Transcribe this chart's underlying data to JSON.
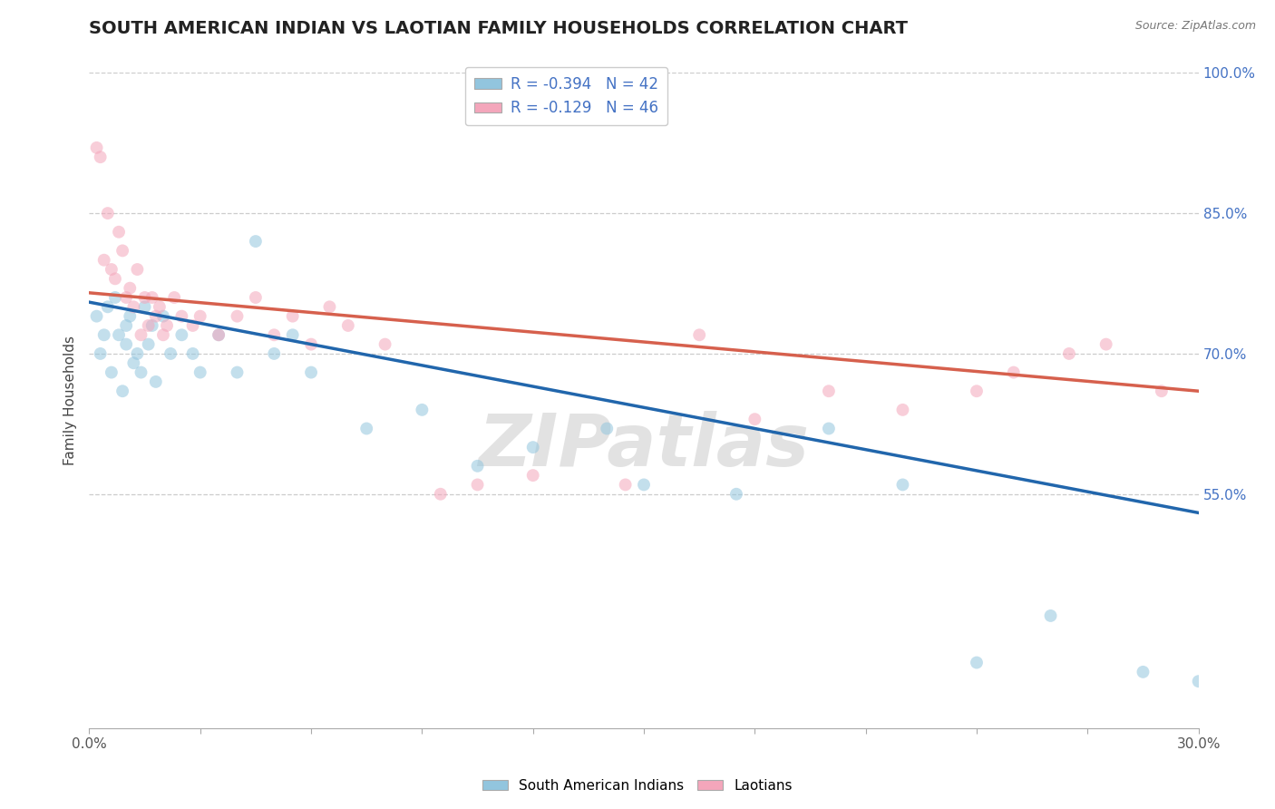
{
  "title": "SOUTH AMERICAN INDIAN VS LAOTIAN FAMILY HOUSEHOLDS CORRELATION CHART",
  "source_text": "Source: ZipAtlas.com",
  "ylabel": "Family Households",
  "xlim": [
    0.0,
    30.0
  ],
  "ylim": [
    30.0,
    100.0
  ],
  "xticks": [
    0.0,
    3.0,
    6.0,
    9.0,
    12.0,
    15.0,
    18.0,
    21.0,
    24.0,
    27.0,
    30.0
  ],
  "yticks": [
    55.0,
    70.0,
    85.0,
    100.0
  ],
  "legend1_label": "R = -0.394   N = 42",
  "legend2_label": "R = -0.129   N = 46",
  "blue_color": "#92c5de",
  "pink_color": "#f4a6bb",
  "blue_line_color": "#2166ac",
  "pink_line_color": "#d6604d",
  "watermark": "ZIPatlas",
  "blue_scatter_x": [
    0.2,
    0.3,
    0.4,
    0.5,
    0.6,
    0.7,
    0.8,
    0.9,
    1.0,
    1.0,
    1.1,
    1.2,
    1.3,
    1.4,
    1.5,
    1.6,
    1.7,
    1.8,
    2.0,
    2.2,
    2.5,
    2.8,
    3.0,
    3.5,
    4.0,
    4.5,
    5.0,
    5.5,
    6.0,
    7.5,
    9.0,
    10.5,
    12.0,
    14.0,
    15.0,
    17.5,
    20.0,
    22.0,
    24.0,
    26.0,
    28.5,
    30.0
  ],
  "blue_scatter_y": [
    74.0,
    70.0,
    72.0,
    75.0,
    68.0,
    76.0,
    72.0,
    66.0,
    73.0,
    71.0,
    74.0,
    69.0,
    70.0,
    68.0,
    75.0,
    71.0,
    73.0,
    67.0,
    74.0,
    70.0,
    72.0,
    70.0,
    68.0,
    72.0,
    68.0,
    82.0,
    70.0,
    72.0,
    68.0,
    62.0,
    64.0,
    58.0,
    60.0,
    62.0,
    56.0,
    55.0,
    62.0,
    56.0,
    37.0,
    42.0,
    36.0,
    35.0
  ],
  "pink_scatter_x": [
    0.2,
    0.3,
    0.4,
    0.5,
    0.6,
    0.7,
    0.8,
    0.9,
    1.0,
    1.1,
    1.2,
    1.3,
    1.4,
    1.5,
    1.6,
    1.7,
    1.8,
    1.9,
    2.0,
    2.1,
    2.3,
    2.5,
    2.8,
    3.0,
    3.5,
    4.0,
    4.5,
    5.0,
    5.5,
    6.0,
    6.5,
    7.0,
    8.0,
    9.5,
    10.5,
    12.0,
    14.5,
    16.5,
    18.0,
    20.0,
    22.0,
    24.0,
    25.0,
    26.5,
    27.5,
    29.0
  ],
  "pink_scatter_y": [
    92.0,
    91.0,
    80.0,
    85.0,
    79.0,
    78.0,
    83.0,
    81.0,
    76.0,
    77.0,
    75.0,
    79.0,
    72.0,
    76.0,
    73.0,
    76.0,
    74.0,
    75.0,
    72.0,
    73.0,
    76.0,
    74.0,
    73.0,
    74.0,
    72.0,
    74.0,
    76.0,
    72.0,
    74.0,
    71.0,
    75.0,
    73.0,
    71.0,
    55.0,
    56.0,
    57.0,
    56.0,
    72.0,
    63.0,
    66.0,
    64.0,
    66.0,
    68.0,
    70.0,
    71.0,
    66.0
  ],
  "blue_line_x": [
    0.0,
    30.0
  ],
  "blue_line_y": [
    75.5,
    53.0
  ],
  "pink_line_x": [
    0.0,
    30.0
  ],
  "pink_line_y": [
    76.5,
    66.0
  ],
  "grid_yticks": [
    55.0,
    70.0,
    85.0,
    100.0
  ],
  "bg_color": "#ffffff",
  "title_fontsize": 14,
  "axis_label_fontsize": 11,
  "tick_fontsize": 11,
  "scatter_size": 100,
  "scatter_alpha": 0.55,
  "line_width": 2.5
}
